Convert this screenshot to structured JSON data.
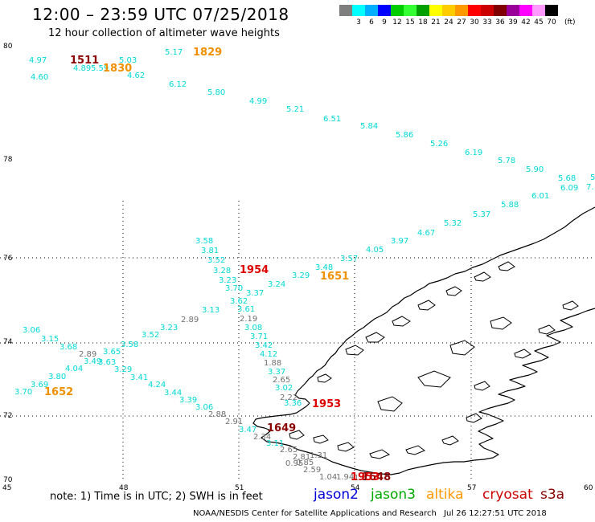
{
  "header": {
    "title": "12:00 – 23:59 UTC 07/25/2018",
    "subtitle": "12 hour collection of altimeter wave heights"
  },
  "legend": {
    "unit": "(ft)",
    "bins": [
      {
        "color": "#7f7f7f",
        "label": ""
      },
      {
        "color": "#00ffff",
        "label": "3"
      },
      {
        "color": "#00b0ff",
        "label": "6"
      },
      {
        "color": "#0000ff",
        "label": "9"
      },
      {
        "color": "#00cc00",
        "label": "12"
      },
      {
        "color": "#33ff33",
        "label": "15"
      },
      {
        "color": "#00a000",
        "label": "18"
      },
      {
        "color": "#ffff00",
        "label": "21"
      },
      {
        "color": "#ffcc00",
        "label": "24"
      },
      {
        "color": "#ff9900",
        "label": "27"
      },
      {
        "color": "#ff0000",
        "label": "30"
      },
      {
        "color": "#cc0000",
        "label": "33"
      },
      {
        "color": "#800000",
        "label": "36"
      },
      {
        "color": "#990099",
        "label": "39"
      },
      {
        "color": "#ff00ff",
        "label": "42"
      },
      {
        "color": "#ff99ff",
        "label": "45"
      },
      {
        "color": "#000000",
        "label": "70"
      }
    ]
  },
  "map": {
    "lat_labels": [
      "80",
      "78",
      "76",
      "74",
      "72",
      "70"
    ],
    "lon_labels": [
      "45",
      "48",
      "51",
      "54",
      "57",
      "60"
    ],
    "colors": {
      "cyan": "#00d8d8",
      "grey": "#707070",
      "orange": "#f09000",
      "darkred": "#8b0000",
      "red": "#dd0000"
    },
    "swh_cyan": [
      "4.97",
      "5.03",
      "5.17",
      "4.60",
      "4.62",
      "6.12",
      "5.80",
      "4.99",
      "5.21",
      "6.51",
      "5.84",
      "5.86",
      "5.26",
      "6.19",
      "5.78",
      "5.90",
      "5.68",
      "6.09",
      "6.01",
      "5.88",
      "5.37",
      "5.32",
      "4.67",
      "3.97",
      "4.05",
      "3.57",
      "3.48",
      "3.29",
      "3.24",
      "3.58",
      "3.81",
      "3.52",
      "3.28",
      "3.23",
      "3.70",
      "3.37",
      "3.62",
      "3.61",
      "3.13",
      "3.08",
      "3.71",
      "3.42",
      "4.12",
      "3.37",
      "3.02",
      "3.06",
      "3.15",
      "3.68",
      "3.65",
      "3.58",
      "3.52",
      "3.23",
      "3.49",
      "3.63",
      "4.04",
      "3.29",
      "3.41",
      "3.80",
      "3.69",
      "3.70",
      "4.24",
      "3.44",
      "3.39",
      "3.06",
      "3.47",
      "3.11",
      "3.36",
      "4.89",
      "5.59",
      "5",
      "7."
    ],
    "swh_grey": [
      "2.89",
      "2.89",
      "2.19",
      "1.88",
      "2.65",
      "2.22",
      "2.88",
      "2.91",
      "2.34",
      "2.65",
      "2.81",
      "1.31",
      "0.95",
      "0.85",
      "2.59",
      "1.04",
      "1.94",
      "1.6"
    ],
    "times": [
      {
        "label": "1511",
        "sat": "darkred"
      },
      {
        "label": "1830",
        "sat": "orange"
      },
      {
        "label": "1829",
        "sat": "orange"
      },
      {
        "label": "1954",
        "sat": "red"
      },
      {
        "label": "1651",
        "sat": "orange"
      },
      {
        "label": "1652",
        "sat": "orange"
      },
      {
        "label": "1953",
        "sat": "red"
      },
      {
        "label": "1649",
        "sat": "darkred"
      },
      {
        "label": "1648",
        "sat": "darkred"
      },
      {
        "label": "1953",
        "sat": "red"
      }
    ]
  },
  "footer": {
    "note": "note: 1) Time is in UTC; 2) SWH is in feet",
    "satellites": [
      {
        "name": "jason2",
        "color": "#0000dd"
      },
      {
        "name": "jason3",
        "color": "#00aa00"
      },
      {
        "name": "altika",
        "color": "#ff9900"
      },
      {
        "name": "cryosat",
        "color": "#cc0000"
      },
      {
        "name": "s3a",
        "color": "#880000"
      }
    ],
    "credit": "NOAA/NESDIS Center for Satellite Applications and Research",
    "timestamp": "Jul 26 12:27:51 UTC 2018"
  }
}
